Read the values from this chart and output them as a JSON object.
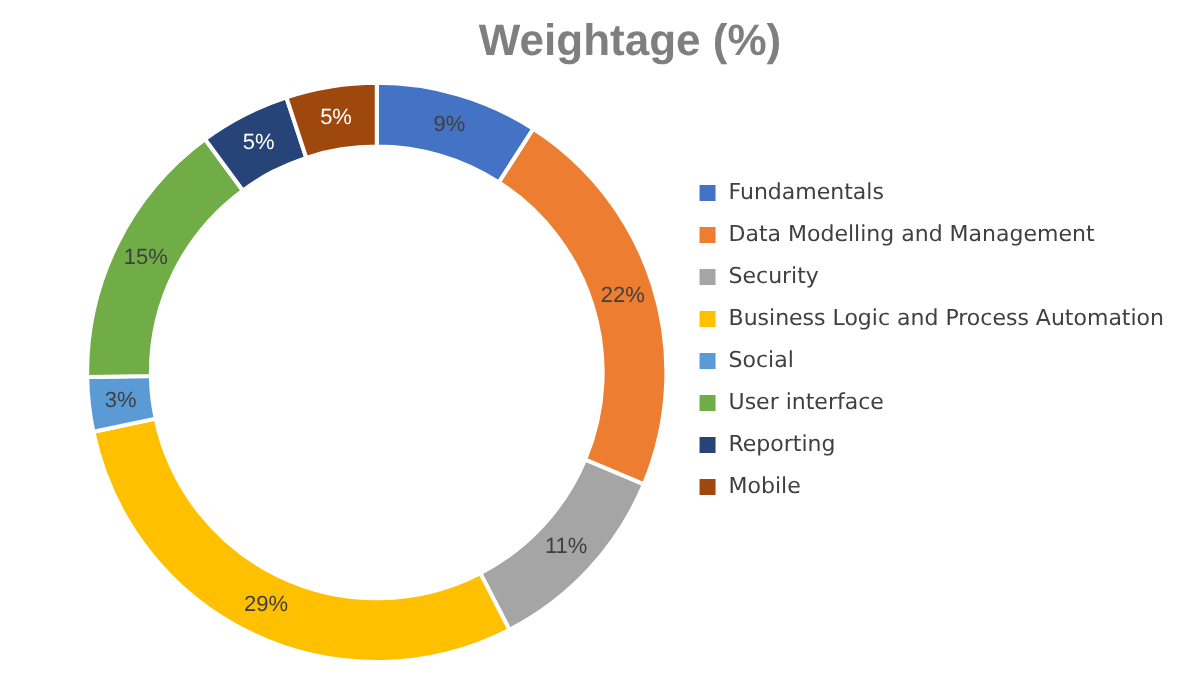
{
  "chart_data": {
    "type": "donut",
    "title": "Weightage (%)",
    "categories": [
      "Fundamentals",
      "Data Modelling and Management",
      "Security",
      "Business Logic and Process Automation",
      "Social",
      "User interface",
      "Reporting",
      "Mobile"
    ],
    "values": [
      9,
      22,
      11,
      29,
      3,
      15,
      5,
      5
    ],
    "colors": [
      "#4472c4",
      "#ed7d31",
      "#a5a5a5",
      "#ffc000",
      "#5b9bd5",
      "#70ad47",
      "#264478",
      "#9e480e"
    ],
    "value_labels": [
      "9%",
      "22%",
      "11%",
      "29%",
      "3%",
      "15%",
      "5%",
      "5%"
    ],
    "legend": "right"
  }
}
